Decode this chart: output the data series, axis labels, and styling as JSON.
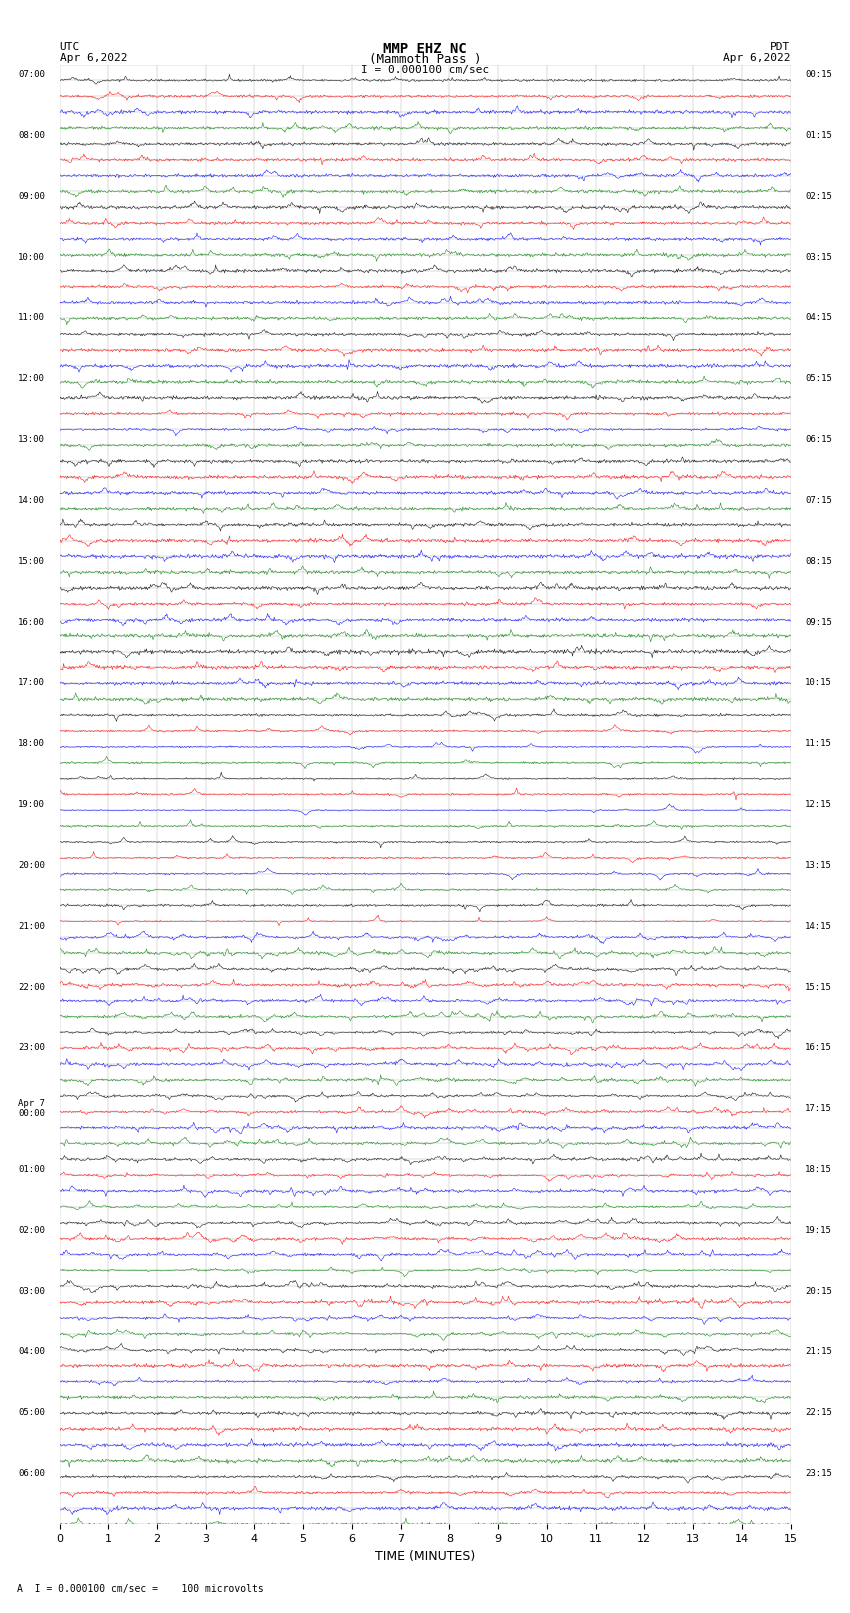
{
  "title_line1": "MMP EHZ NC",
  "title_line2": "(Mammoth Pass )",
  "title_line3": "I = 0.000100 cm/sec",
  "left_header_line1": "UTC",
  "left_header_line2": "Apr 6,2022",
  "right_header_line1": "PDT",
  "right_header_line2": "Apr 6,2022",
  "xlabel": "TIME (MINUTES)",
  "footer": "A  I = 0.000100 cm/sec =    100 microvolts",
  "left_times": [
    "07:00",
    "",
    "",
    "08:00",
    "",
    "",
    "09:00",
    "",
    "",
    "10:00",
    "",
    "",
    "11:00",
    "",
    "",
    "12:00",
    "",
    "",
    "13:00",
    "",
    "",
    "14:00",
    "",
    "",
    "15:00",
    "",
    "",
    "16:00",
    "",
    "",
    "17:00",
    "",
    "",
    "18:00",
    "",
    "",
    "19:00",
    "",
    "",
    "20:00",
    "",
    "",
    "21:00",
    "",
    "",
    "22:00",
    "",
    "",
    "23:00",
    "",
    "",
    "Apr 7\n00:00",
    "",
    "",
    "01:00",
    "",
    "",
    "02:00",
    "",
    "",
    "03:00",
    "",
    "",
    "04:00",
    "",
    "",
    "05:00",
    "",
    "",
    "06:00",
    "",
    ""
  ],
  "right_times": [
    "00:15",
    "",
    "",
    "01:15",
    "",
    "",
    "02:15",
    "",
    "",
    "03:15",
    "",
    "",
    "04:15",
    "",
    "",
    "05:15",
    "",
    "",
    "06:15",
    "",
    "",
    "07:15",
    "",
    "",
    "08:15",
    "",
    "",
    "09:15",
    "",
    "",
    "10:15",
    "",
    "",
    "11:15",
    "",
    "",
    "12:15",
    "",
    "",
    "13:15",
    "",
    "",
    "14:15",
    "",
    "",
    "15:15",
    "",
    "",
    "16:15",
    "",
    "",
    "17:15",
    "",
    "",
    "18:15",
    "",
    "",
    "19:15",
    "",
    "",
    "20:15",
    "",
    "",
    "21:15",
    "",
    "",
    "22:15",
    "",
    "",
    "23:15",
    "",
    ""
  ],
  "n_rows": 92,
  "n_cols": 15,
  "background_color": "#ffffff",
  "trace_colors": [
    "#000000",
    "#ff0000",
    "#0000ff",
    "#008000"
  ],
  "grid_color": "#aaaaaa",
  "text_color": "#000000",
  "figsize": [
    8.5,
    16.13
  ],
  "dpi": 100
}
